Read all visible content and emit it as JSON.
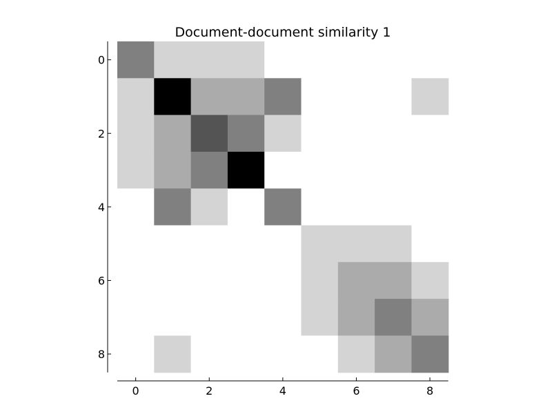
{
  "chart_data": {
    "type": "heatmap",
    "title": "Document-document similarity 1",
    "xlabel": "",
    "ylabel": "",
    "colormap": "grayscale (white = low, black = high)",
    "rows": [
      0,
      1,
      2,
      3,
      4,
      5,
      6,
      7,
      8
    ],
    "cols": [
      0,
      1,
      2,
      3,
      4,
      5,
      6,
      7,
      8
    ],
    "x_ticks": [
      0,
      2,
      4,
      6,
      8
    ],
    "y_ticks": [
      0,
      2,
      4,
      6,
      8
    ],
    "xlim": [
      -0.5,
      8.5
    ],
    "ylim": [
      -0.5,
      8.5
    ],
    "values": [
      [
        0.5,
        0.17,
        0.17,
        0.17,
        0.0,
        0.0,
        0.0,
        0.0,
        0.0
      ],
      [
        0.17,
        1.0,
        0.33,
        0.33,
        0.5,
        0.0,
        0.0,
        0.0,
        0.17
      ],
      [
        0.17,
        0.33,
        0.67,
        0.5,
        0.17,
        0.0,
        0.0,
        0.0,
        0.0
      ],
      [
        0.17,
        0.33,
        0.5,
        1.0,
        0.0,
        0.0,
        0.0,
        0.0,
        0.0
      ],
      [
        0.0,
        0.5,
        0.17,
        0.0,
        0.5,
        0.0,
        0.0,
        0.0,
        0.0
      ],
      [
        0.0,
        0.0,
        0.0,
        0.0,
        0.0,
        0.17,
        0.17,
        0.17,
        0.0
      ],
      [
        0.0,
        0.0,
        0.0,
        0.0,
        0.0,
        0.17,
        0.33,
        0.33,
        0.17
      ],
      [
        0.0,
        0.0,
        0.0,
        0.0,
        0.0,
        0.17,
        0.33,
        0.5,
        0.33
      ],
      [
        0.0,
        0.17,
        0.0,
        0.0,
        0.0,
        0.0,
        0.17,
        0.33,
        0.5
      ]
    ]
  }
}
